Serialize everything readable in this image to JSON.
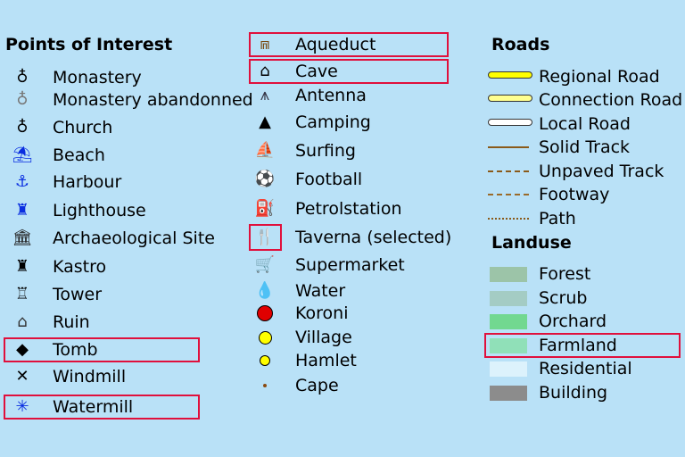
{
  "headings": {
    "poi": "Points of Interest",
    "roads": "Roads",
    "landuse": "Landuse"
  },
  "poi_left": [
    {
      "label": "Monastery",
      "icon": "monastery-icon",
      "glyph": "♁",
      "color": "#000"
    },
    {
      "label": "Monastery abandonned",
      "icon": "monastery-abandoned-icon",
      "glyph": "♁",
      "color": "#777"
    },
    {
      "label": "Church",
      "icon": "church-icon",
      "glyph": "♁",
      "color": "#000"
    },
    {
      "label": "Beach",
      "icon": "beach-umbrella-icon",
      "glyph": "⛱",
      "color": "#0a2ee0"
    },
    {
      "label": "Harbour",
      "icon": "anchor-icon",
      "glyph": "⚓",
      "color": "#0a2ee0"
    },
    {
      "label": "Lighthouse",
      "icon": "lighthouse-icon",
      "glyph": "♜",
      "color": "#0a2ee0"
    },
    {
      "label": "Archaeological Site",
      "icon": "temple-icon",
      "glyph": "🏛",
      "color": "#222"
    },
    {
      "label": "Kastro",
      "icon": "castle-icon",
      "glyph": "♜",
      "color": "#000"
    },
    {
      "label": "Tower",
      "icon": "tower-icon",
      "glyph": "♖",
      "color": "#000"
    },
    {
      "label": "Ruin",
      "icon": "ruin-icon",
      "glyph": "⌂",
      "color": "#333"
    },
    {
      "label": "Tomb",
      "icon": "tomb-icon",
      "glyph": "◆",
      "color": "#000",
      "selected": true
    },
    {
      "label": "Windmill",
      "icon": "windmill-icon",
      "glyph": "✕",
      "color": "#000"
    },
    {
      "label": "Watermill",
      "icon": "watermill-icon",
      "glyph": "✳",
      "color": "#0a2ee0",
      "selected": true
    }
  ],
  "poi_mid": [
    {
      "label": "Aqueduct",
      "icon": "aqueduct-icon",
      "glyph": "⩎",
      "color": "#7a4a10",
      "selected": true
    },
    {
      "label": "Cave",
      "icon": "cave-icon",
      "glyph": "⌂",
      "color": "#000",
      "selected": true
    },
    {
      "label": "Antenna",
      "icon": "antenna-icon",
      "glyph": "⩚",
      "color": "#334"
    },
    {
      "label": "Camping",
      "icon": "tent-icon",
      "glyph": "▲",
      "color": "#000"
    },
    {
      "label": "Surfing",
      "icon": "surfing-icon",
      "glyph": "⛵",
      "color": "#1e6ee8"
    },
    {
      "label": "Football",
      "icon": "football-icon",
      "glyph": "⚽",
      "color": "#000"
    },
    {
      "label": "Petrolstation",
      "icon": "fuel-pump-icon",
      "glyph": "⛽",
      "color": "#e0102a"
    },
    {
      "label": "Taverna (selected)",
      "icon": "restaurant-icon",
      "glyph": "🍴",
      "color": "#e0102a",
      "icon_selected": true
    },
    {
      "label": "Supermarket",
      "icon": "shopping-cart-icon",
      "glyph": "🛒",
      "color": "#e0102a"
    },
    {
      "label": "Water",
      "icon": "water-tap-icon",
      "glyph": "💧",
      "color": "#2040e0"
    },
    {
      "label": "Koroni",
      "icon": "koroni-dot-icon",
      "dot": "#e00000",
      "size": 16
    },
    {
      "label": "Village",
      "icon": "village-dot-icon",
      "dot": "#ffff00",
      "size": 13
    },
    {
      "label": "Hamlet",
      "icon": "hamlet-dot-icon",
      "dot": "#ffff00",
      "size": 10
    },
    {
      "label": "Cape",
      "icon": "cape-dot-icon",
      "dot": "#8a4a10",
      "size": 4
    }
  ],
  "roads": [
    {
      "label": "Regional Road",
      "style": "road",
      "color": "#ffff00"
    },
    {
      "label": "Connection Road",
      "style": "road",
      "color": "#ffff90"
    },
    {
      "label": "Local Road",
      "style": "road",
      "color": "#ffffff"
    },
    {
      "label": "Solid Track",
      "style": "solid",
      "color": "#8a5a1a"
    },
    {
      "label": "Unpaved Track",
      "style": "dashed",
      "color": "#8a5a1a"
    },
    {
      "label": "Footway",
      "style": "dashed",
      "color": "#9a6a2a"
    },
    {
      "label": "Path",
      "style": "dotted",
      "color": "#8a5a1a"
    }
  ],
  "landuse": [
    {
      "label": "Forest",
      "color": "#9cc4a8"
    },
    {
      "label": "Scrub",
      "color": "#a4ccc4"
    },
    {
      "label": "Orchard",
      "color": "#72d890"
    },
    {
      "label": "Farmland",
      "color": "#90e0b8",
      "selected": true
    },
    {
      "label": "Residential",
      "color": "#dcf2fc"
    },
    {
      "label": "Building",
      "color": "#8c8c8c"
    }
  ],
  "highlight_color": "#e0103c"
}
